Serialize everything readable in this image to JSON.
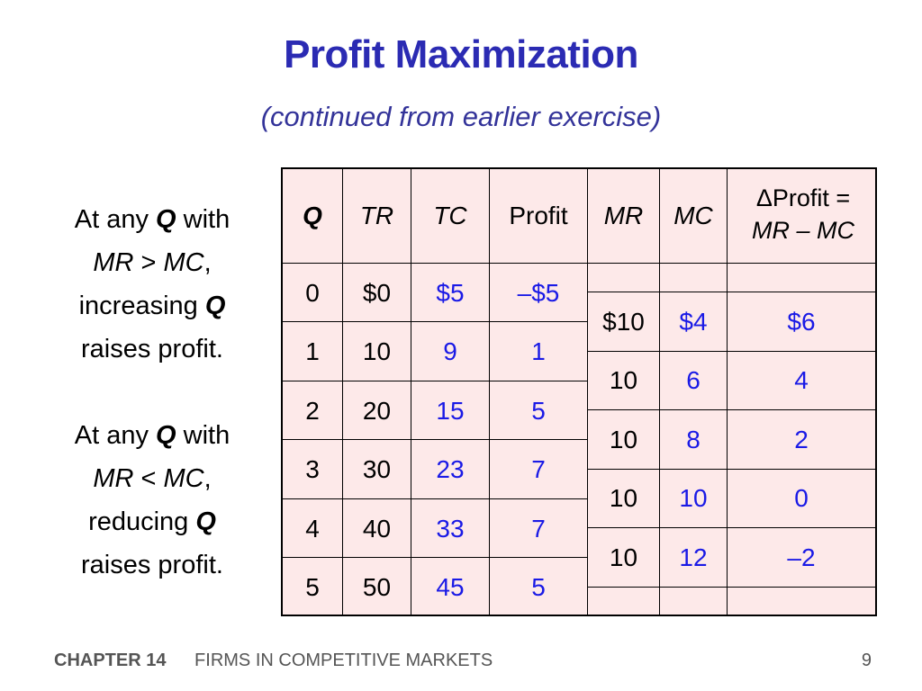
{
  "title": "Profit Maximization",
  "subtitle": "(continued from earlier exercise)",
  "side_text": [
    {
      "line1_pre": "At any ",
      "line1_var": "Q",
      "line1_post": " with",
      "line2_a": "MR",
      "line2_op": " > ",
      "line2_b": "MC",
      "line2_post": ",",
      "line3_pre": "increasing ",
      "line3_var": "Q",
      "line4": "raises profit."
    },
    {
      "line1_pre": "At any ",
      "line1_var": "Q",
      "line1_post": " with",
      "line2_a": "MR",
      "line2_op": " < ",
      "line2_b": "MC",
      "line2_post": ",",
      "line3_pre": "reducing ",
      "line3_var": "Q",
      "line4": "raises profit."
    }
  ],
  "table": {
    "headers": [
      "Q",
      "TR",
      "TC",
      "Profit",
      "MR",
      "MC"
    ],
    "delta_header_symbol": "Δ",
    "delta_header_line1": "Profit =",
    "delta_header_line2": "MR – MC",
    "rows": [
      {
        "q": "0",
        "tr": "$0",
        "tc": "$5",
        "profit": "–$5"
      },
      {
        "q": "1",
        "tr": "10",
        "tc": "9",
        "profit": "1"
      },
      {
        "q": "2",
        "tr": "20",
        "tc": "15",
        "profit": "5"
      },
      {
        "q": "3",
        "tr": "30",
        "tc": "23",
        "profit": "7"
      },
      {
        "q": "4",
        "tr": "40",
        "tc": "33",
        "profit": "7"
      },
      {
        "q": "5",
        "tr": "50",
        "tc": "45",
        "profit": "5"
      }
    ],
    "marginal_rows": [
      {
        "mr": "$10",
        "mc": "$4",
        "dprofit": "$6"
      },
      {
        "mr": "10",
        "mc": "6",
        "dprofit": "4"
      },
      {
        "mr": "10",
        "mc": "8",
        "dprofit": "2"
      },
      {
        "mr": "10",
        "mc": "10",
        "dprofit": "0"
      },
      {
        "mr": "10",
        "mc": "12",
        "dprofit": "–2"
      }
    ]
  },
  "footer": {
    "chapter": "CHAPTER 14",
    "title": "FIRMS IN COMPETITIVE MARKETS",
    "page": "9"
  },
  "colors": {
    "title": "#2b2bb3",
    "subtitle": "#333399",
    "table_bg": "#fde9e9",
    "blue_values": "#1a1ae6"
  }
}
